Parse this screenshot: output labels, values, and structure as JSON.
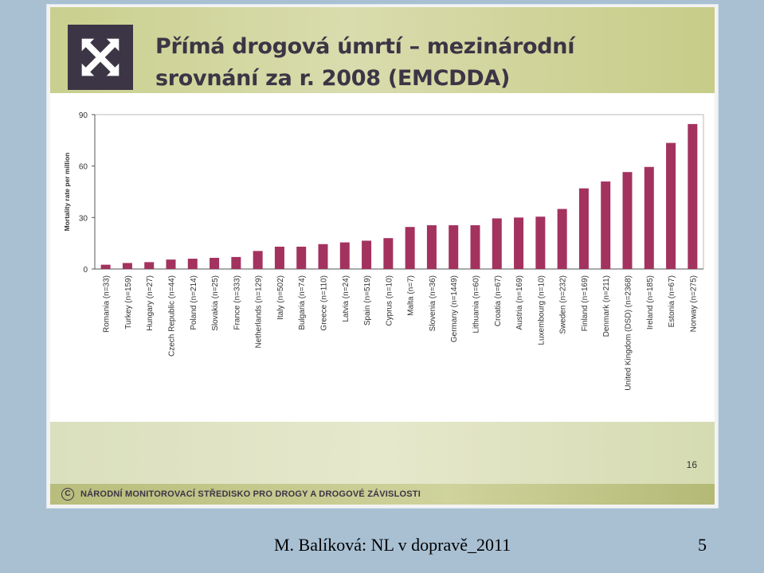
{
  "slide": {
    "title_line1": "Přímá drogová úmrtí – mezinárodní",
    "title_line2": "srovnání za r. 2008 (EMCDDA)",
    "slide_number": "16",
    "footer_symbol": "C",
    "footer_text": "NÁRODNÍ MONITOROVACÍ STŘEDISKO PRO DROGY A DROGOVÉ ZÁVISLOSTI"
  },
  "caption": "M. Balíková: NL v dopravě_2011",
  "page_number": "5",
  "colors": {
    "bar": "#a3325f",
    "axis": "#555555",
    "title": "#3b3545"
  },
  "chart_data": {
    "type": "bar",
    "ylabel": "Mortality rate per million",
    "ylim": [
      0,
      90
    ],
    "yticks": [
      0,
      30,
      60,
      90
    ],
    "grid": false,
    "categories": [
      "Romania (n=33)",
      "Turkey (n=159)",
      "Hungary (n=27)",
      "Czech Republic (n=44)",
      "Poland (n=214)",
      "Slovakia (n=25)",
      "France (n=333)",
      "Netherlands (n=129)",
      "Italy (n=502)",
      "Bulgaria (n=74)",
      "Greece (n=110)",
      "Latvia (n=24)",
      "Spain (n=519)",
      "Cyprus (n=10)",
      "Malta (n=7)",
      "Slovenia (n=36)",
      "Germany (n=1449)",
      "Lithuania (n=60)",
      "Croatia (n=67)",
      "Austria (n=169)",
      "Luxembourg (n=10)",
      "Sweden (n=232)",
      "Finland (n=169)",
      "Denmark (n=211)",
      "United Kingdom (DSD) (n=2368)",
      "Ireland (n=185)",
      "Estonia (n=67)",
      "Norway (n=275)"
    ],
    "values": [
      2.5,
      3.5,
      4,
      5.5,
      6,
      6.5,
      7,
      10.5,
      13,
      13,
      14.5,
      15.5,
      16.5,
      18,
      24.5,
      25.5,
      25.5,
      25.5,
      29.5,
      30,
      30.5,
      35,
      47,
      51,
      56.5,
      59.5,
      73.5,
      84.5
    ]
  }
}
